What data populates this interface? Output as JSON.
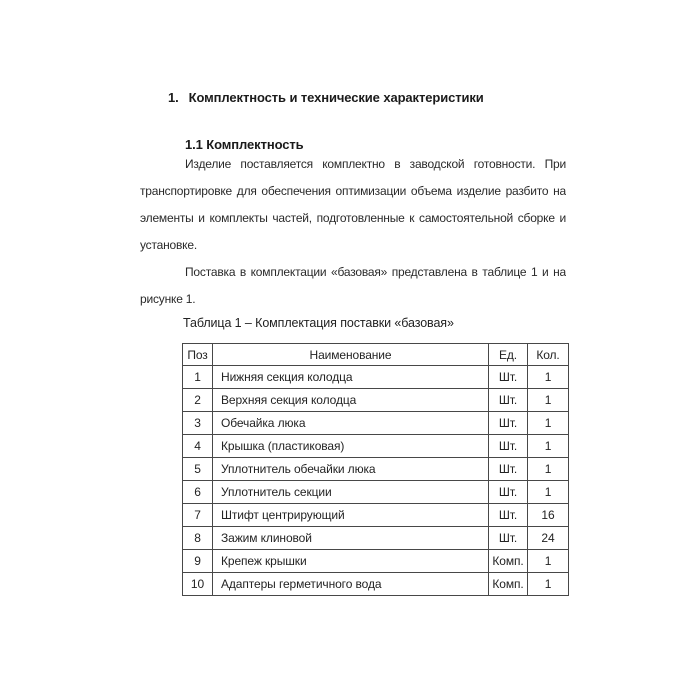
{
  "colors": {
    "page_background": "#ffffff",
    "body_text": "#2a2a2a",
    "heading_text": "#1b1b1b",
    "table_border": "#484848"
  },
  "document": {
    "heading": {
      "number": "1.",
      "text": "Комплектность и технические характеристики"
    },
    "subheading": "1.1 Комплектность",
    "paragraphs": [
      {
        "indent_first": true,
        "full_text": "Изделие поставляется комплектно в заводской готовности. При транспортировке для обеспечения оптимизации объема изделие разбито на элементы и комплекты частей, подготовленные к самостоятельной сборке и установке.",
        "lines": [
          "Изделие поставляется комплектно в заводской готовности. При",
          "транспортировке для обеспечения оптимизации объема изделие разбито на",
          "элементы и комплекты частей, подготовленные к самостоятельной сборке и",
          "установке."
        ]
      },
      {
        "indent_first": true,
        "full_text": "Поставка в комплектации «базовая» представлена в таблице 1 и на рисунке 1.",
        "lines": [
          "Поставка в комплектации «базовая» представлена в таблице 1 и на",
          "рисунке 1."
        ]
      }
    ],
    "table": {
      "caption": "Таблица 1 – Комплектация поставки «базовая»",
      "columns": [
        "Поз",
        "Наименование",
        "Ед.",
        "Кол."
      ],
      "rows": [
        [
          "1",
          "Нижняя секция колодца",
          "Шт.",
          "1"
        ],
        [
          "2",
          "Верхняя секция колодца",
          "Шт.",
          "1"
        ],
        [
          "3",
          "Обечайка люка",
          "Шт.",
          "1"
        ],
        [
          "4",
          "Крышка (пластиковая)",
          "Шт.",
          "1"
        ],
        [
          "5",
          "Уплотнитель обечайки люка",
          "Шт.",
          "1"
        ],
        [
          "6",
          "Уплотнитель секции",
          "Шт.",
          "1"
        ],
        [
          "7",
          "Штифт центрирующий",
          "Шт.",
          "16"
        ],
        [
          "8",
          "Зажим клиновой",
          "Шт.",
          "24"
        ],
        [
          "9",
          "Крепеж крышки",
          "Комп.",
          "1"
        ],
        [
          "10",
          "Адаптеры герметичного вода",
          "Комп.",
          "1"
        ]
      ]
    }
  }
}
